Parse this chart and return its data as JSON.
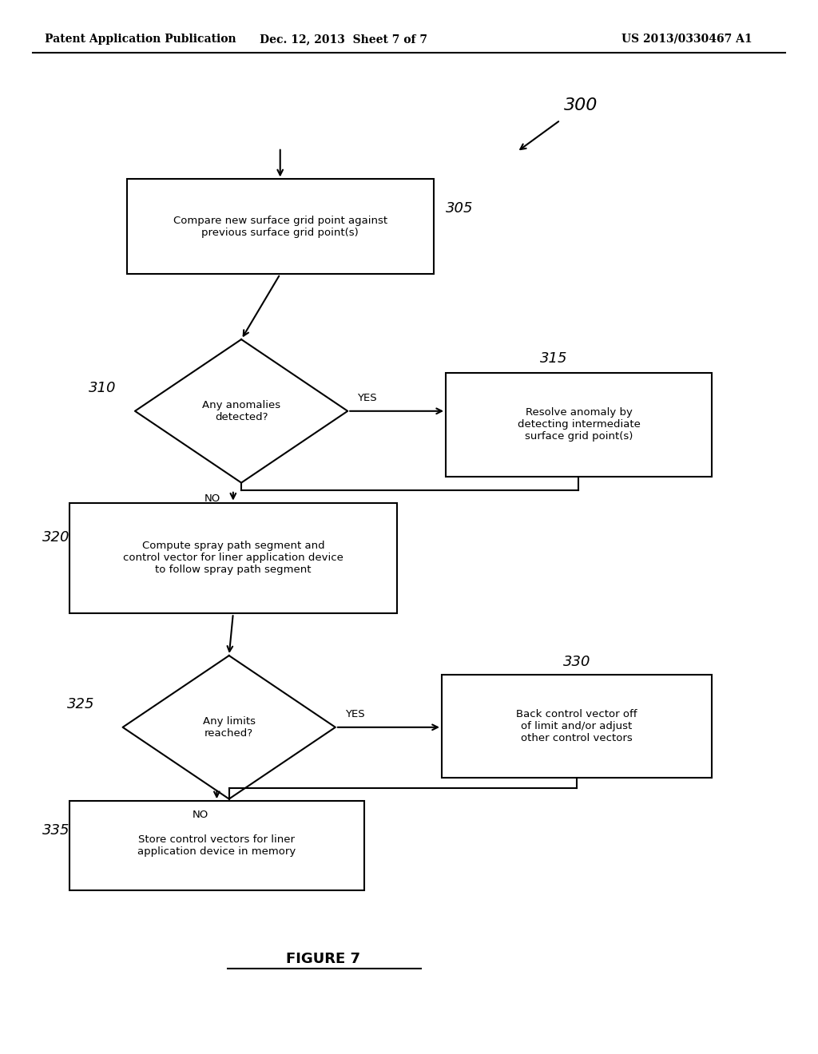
{
  "bg_color": "#ffffff",
  "header_left": "Patent Application Publication",
  "header_center": "Dec. 12, 2013  Sheet 7 of 7",
  "header_right": "US 2013/0330467 A1",
  "figure_label": "FIGURE 7",
  "diagram_ref": "300",
  "box305_label": "Compare new surface grid point against\nprevious surface grid point(s)",
  "box315_label": "Resolve anomaly by\ndetecting intermediate\nsurface grid point(s)",
  "box320_label": "Compute spray path segment and\ncontrol vector for liner application device\nto follow spray path segment",
  "box330_label": "Back control vector off\nof limit and/or adjust\nother control vectors",
  "box335_label": "Store control vectors for liner\napplication device in memory",
  "dia310_label": "Any anomalies\ndetected?",
  "dia325_label": "Any limits\nreached?",
  "ref305": "305",
  "ref310": "310",
  "ref315": "315",
  "ref320": "320",
  "ref325": "325",
  "ref330": "330",
  "ref335": "335",
  "yes_label": "YES",
  "no_label": "NO"
}
